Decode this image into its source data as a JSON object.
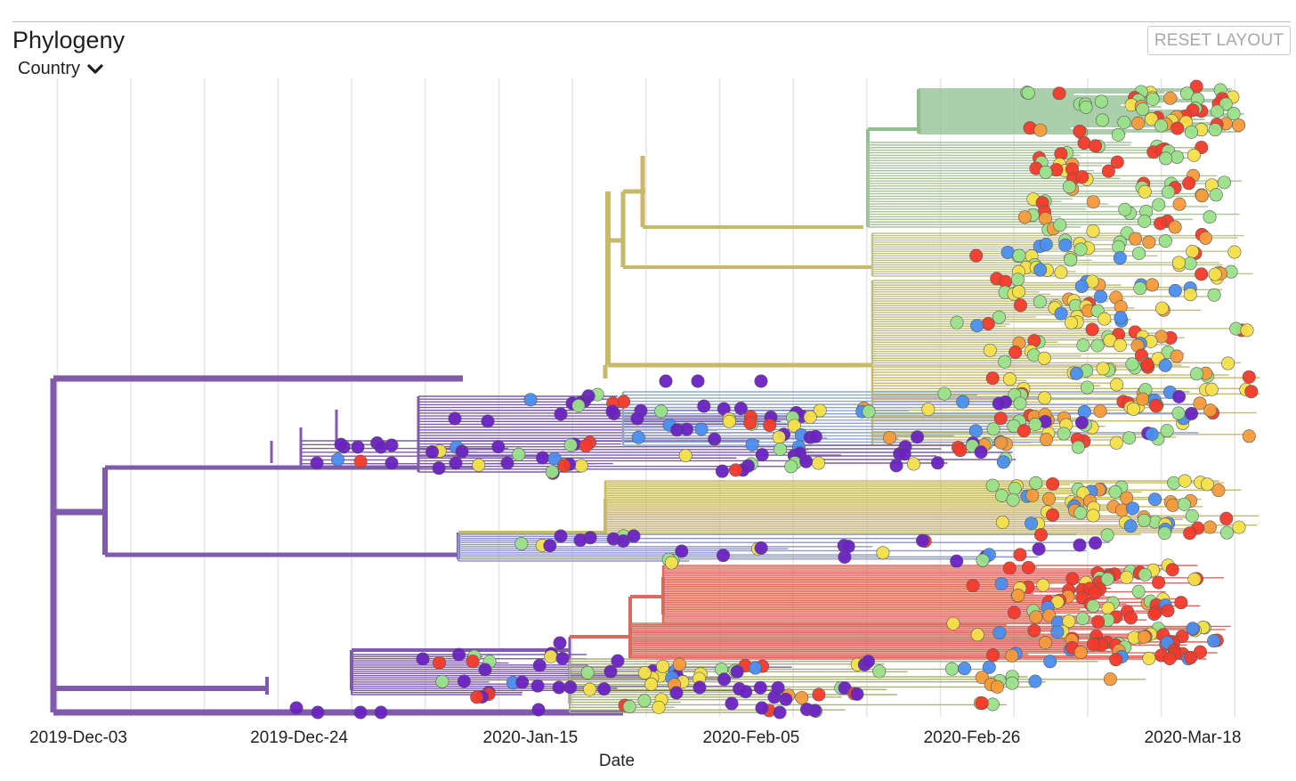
{
  "panel": {
    "title": "Phylogeny",
    "color_by": "Country",
    "chevron_icon": "chevron-down-icon",
    "reset_label": "RESET LAYOUT"
  },
  "chart_data": {
    "type": "phylogenetic-tree",
    "layout": "rectangular",
    "xlabel": "Date",
    "x_ticks": [
      "2019-Dec-03",
      "2019-Dec-24",
      "2020-Jan-15",
      "2020-Feb-05",
      "2020-Feb-26",
      "2020-Mar-18"
    ],
    "x_range": [
      "2019-Dec-01",
      "2020-Mar-26"
    ],
    "gridlines": "vertical",
    "palette": {
      "purple": "#7f5aad",
      "olive": "#c8b86a",
      "green": "#8fbf8f",
      "red": "#d86a5e",
      "blue": "#5b8fe0",
      "tip_purple": "#6a22c2",
      "tip_blue": "#4a8ef0",
      "tip_lightgreen": "#9ae28a",
      "tip_yellow": "#f4e04a",
      "tip_red": "#f43a2a",
      "tip_orange": "#f59a3a"
    }
  }
}
